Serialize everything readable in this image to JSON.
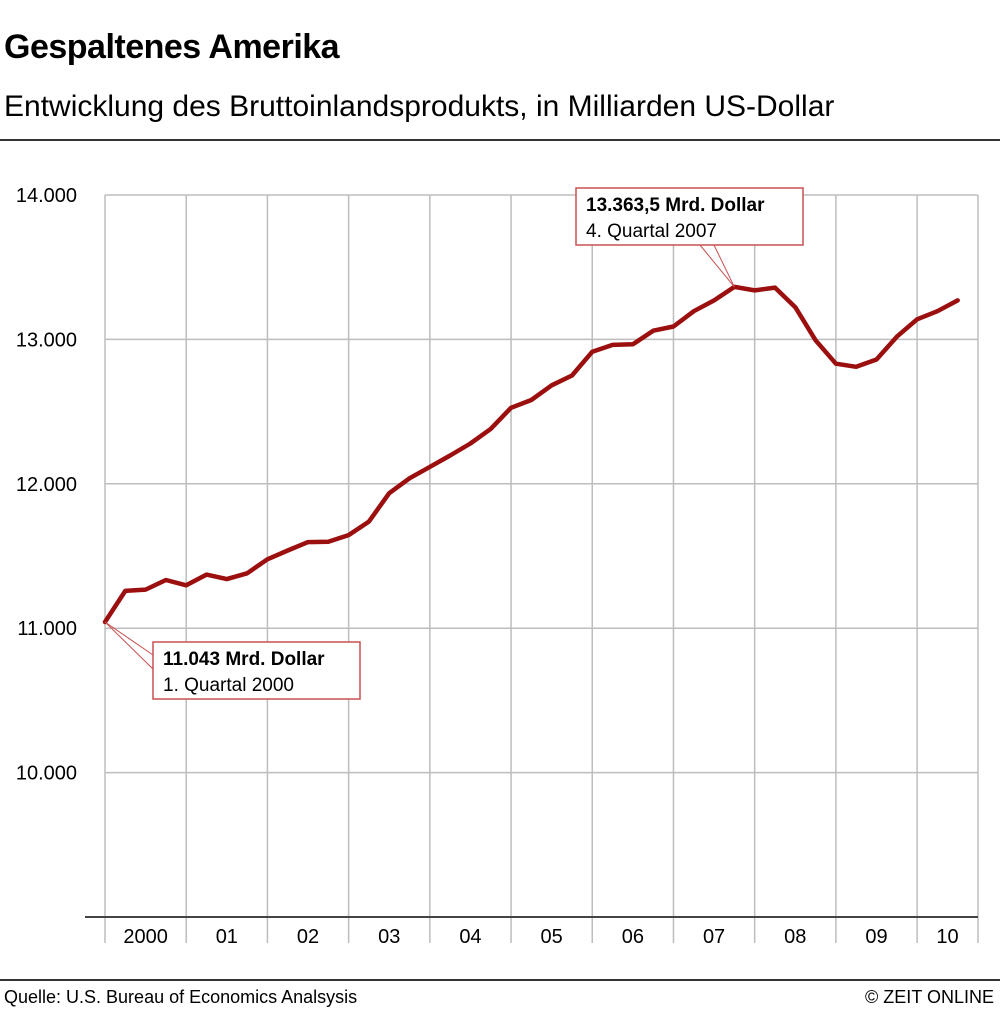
{
  "header": {
    "title": "Gespaltenes Amerika",
    "subtitle": "Entwicklung des Bruttoinlandsprodukts, in Milliarden US-Dollar"
  },
  "footer": {
    "source": "Quelle: U.S. Bureau of Economics Analsysis",
    "credit": "© ZEIT ONLINE"
  },
  "colors": {
    "line": "#9b0f0f",
    "grid": "#bdbdbd",
    "annotation_border": "#c85050"
  },
  "chart_data": {
    "type": "line",
    "title": "Gespaltenes Amerika",
    "subtitle": "Entwicklung des Bruttoinlandsprodukts, in Milliarden US-Dollar",
    "xlabel": "",
    "ylabel": "",
    "ylim": [
      9000,
      14000
    ],
    "yticks": [
      10000,
      11000,
      12000,
      13000,
      14000
    ],
    "ytick_labels": [
      "10.000",
      "11.000",
      "12.000",
      "13.000",
      "14.000"
    ],
    "xlim": [
      2000,
      2010.75
    ],
    "x_categories": [
      {
        "label": "2000",
        "start": 2000,
        "end": 2001
      },
      {
        "label": "01",
        "start": 2001,
        "end": 2002
      },
      {
        "label": "02",
        "start": 2002,
        "end": 2003
      },
      {
        "label": "03",
        "start": 2003,
        "end": 2004
      },
      {
        "label": "04",
        "start": 2004,
        "end": 2005
      },
      {
        "label": "05",
        "start": 2005,
        "end": 2006
      },
      {
        "label": "06",
        "start": 2006,
        "end": 2007
      },
      {
        "label": "07",
        "start": 2007,
        "end": 2008
      },
      {
        "label": "08",
        "start": 2008,
        "end": 2009
      },
      {
        "label": "09",
        "start": 2009,
        "end": 2010
      },
      {
        "label": "10",
        "start": 2010,
        "end": 2010.75
      }
    ],
    "grid": true,
    "series": [
      {
        "name": "Bruttoinlandsprodukt",
        "x": [
          2000.0,
          2000.25,
          2000.5,
          2000.75,
          2001.0,
          2001.25,
          2001.5,
          2001.75,
          2002.0,
          2002.25,
          2002.5,
          2002.75,
          2003.0,
          2003.25,
          2003.5,
          2003.75,
          2004.0,
          2004.25,
          2004.5,
          2004.75,
          2005.0,
          2005.25,
          2005.5,
          2005.75,
          2006.0,
          2006.25,
          2006.5,
          2006.75,
          2007.0,
          2007.25,
          2007.5,
          2007.75,
          2008.0,
          2008.25,
          2008.5,
          2008.75,
          2009.0,
          2009.25,
          2009.5,
          2009.75,
          2010.0,
          2010.25,
          2010.5
        ],
        "values": [
          11043,
          11258,
          11267,
          11334,
          11297,
          11371,
          11340,
          11380,
          11477,
          11538,
          11596,
          11598,
          11645,
          11738,
          11935,
          12038,
          12117,
          12196,
          12279,
          12380,
          12526,
          12580,
          12682,
          12750,
          12915,
          12962,
          12966,
          13060,
          13089,
          13195,
          13270,
          13363.5,
          13339,
          13359,
          13223,
          12994,
          12832,
          12810,
          12861,
          13019,
          13139,
          13195,
          13270
        ]
      }
    ],
    "annotations": [
      {
        "value_label": "11.043 Mrd. Dollar",
        "period_label": "1. Quartal 2000",
        "x": 2000.0,
        "y": 11043
      },
      {
        "value_label": "13.363,5 Mrd. Dollar",
        "period_label": "4. Quartal 2007",
        "x": 2007.75,
        "y": 13363.5
      }
    ]
  }
}
